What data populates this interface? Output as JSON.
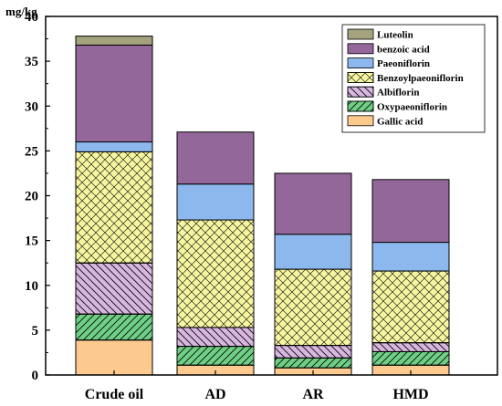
{
  "chart_data": {
    "type": "bar",
    "stacked": true,
    "ylabel": "mg/kg",
    "ylim": [
      0,
      40
    ],
    "yticks": [
      "0",
      "5",
      "10",
      "15",
      "20",
      "25",
      "30",
      "35",
      "40"
    ],
    "categories": [
      "Crude oil",
      "AD",
      "AR",
      "HMD"
    ],
    "legend_position": "top-right",
    "grid": false,
    "series": [
      {
        "name": "Gallic acid",
        "color": "#fcca8e",
        "pattern": "none",
        "values": [
          3.9,
          1.1,
          0.8,
          1.1
        ]
      },
      {
        "name": "Oxypaeoniflorin",
        "color": "#6fcf85",
        "pattern": "diag-up",
        "values": [
          2.9,
          2.1,
          1.1,
          1.5
        ]
      },
      {
        "name": "Albiflorin",
        "color": "#d8b6e0",
        "pattern": "diag-down",
        "values": [
          5.7,
          2.1,
          1.4,
          1.0
        ]
      },
      {
        "name": "Benzoylpaeoniflorin",
        "color": "#f6f5a0",
        "pattern": "crosshatch",
        "values": [
          12.4,
          12.0,
          8.5,
          8.0
        ]
      },
      {
        "name": "Paeoniflorin",
        "color": "#8db8ee",
        "pattern": "none",
        "values": [
          1.1,
          4.0,
          3.9,
          3.2
        ]
      },
      {
        "name": "benzoic acid",
        "color": "#93679a",
        "pattern": "none",
        "values": [
          10.8,
          5.8,
          6.8,
          7.0
        ]
      },
      {
        "name": "Luteolin",
        "color": "#a4a37e",
        "pattern": "none",
        "values": [
          1.0,
          0.0,
          0.0,
          0.0
        ]
      }
    ]
  }
}
